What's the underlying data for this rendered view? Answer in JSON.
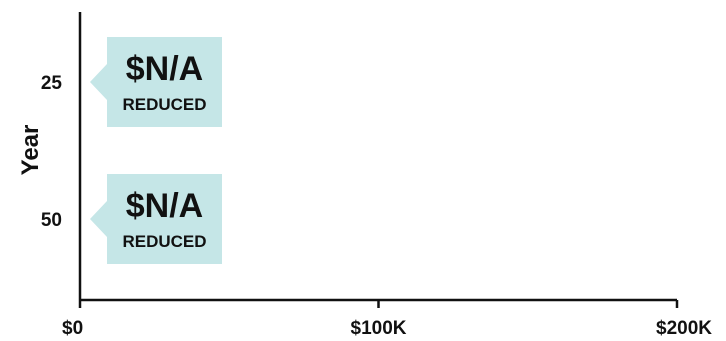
{
  "chart_data": {
    "type": "bar",
    "orientation": "horizontal",
    "ylabel": "Year",
    "xlabel": "",
    "categories": [
      "25",
      "50"
    ],
    "values": [
      null,
      null
    ],
    "value_labels": [
      "$N/A",
      "$N/A"
    ],
    "value_sublabels": [
      "REDUCED",
      "REDUCED"
    ],
    "x_ticks": [
      {
        "value": 0,
        "label": "$0"
      },
      {
        "value": 100000,
        "label": "$100K"
      },
      {
        "value": 200000,
        "label": "$200K"
      }
    ],
    "xlim": [
      0,
      200000
    ],
    "grid": false,
    "legend": "none",
    "colors": {
      "callout": "#c5e6e7",
      "axis": "#111111",
      "text": "#111111"
    }
  }
}
